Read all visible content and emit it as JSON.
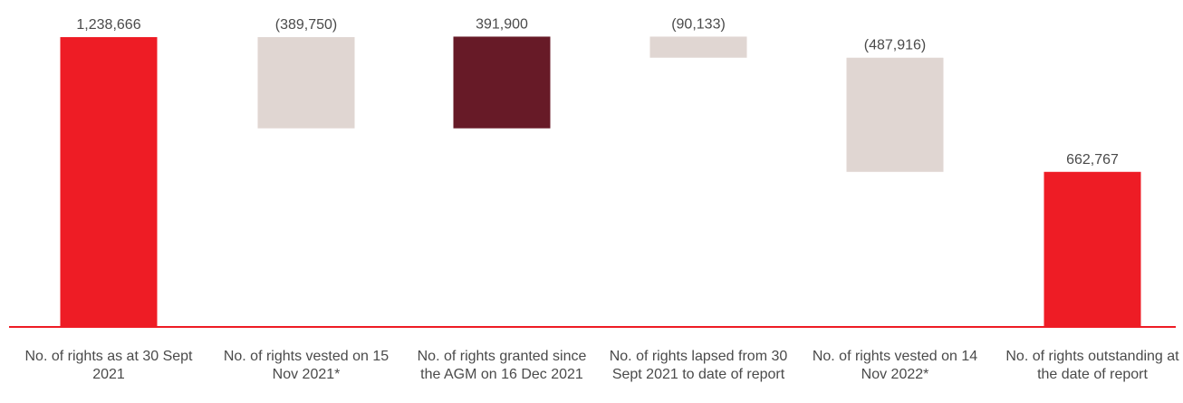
{
  "chart_data": {
    "type": "waterfall",
    "categories": [
      "No. of rights as at 30 Sept 2021",
      "No. of rights vested on 15 Nov 2021*",
      "No. of rights granted since the AGM on 16 Dec 2021",
      "No. of rights lapsed from 30 Sept 2021 to date of report",
      "No. of rights vested on 14 Nov 2022*",
      "No. of rights outstanding at the date of report"
    ],
    "values": [
      1238666,
      -389750,
      391900,
      -90133,
      -487916,
      662767
    ],
    "value_labels": [
      "1,238,666",
      "(389,750)",
      "391,900",
      "(90,133)",
      "(487,916)",
      "662,767"
    ],
    "kinds": [
      "total",
      "decrease",
      "increase",
      "decrease",
      "decrease",
      "total"
    ],
    "colors": {
      "total": "#ee1c25",
      "decrease": "#e0d6d2",
      "increase": "#671a27",
      "baseline": "#ee1c25",
      "label_text": "#4a4a4a"
    },
    "ylim": [
      0,
      1238666
    ]
  }
}
